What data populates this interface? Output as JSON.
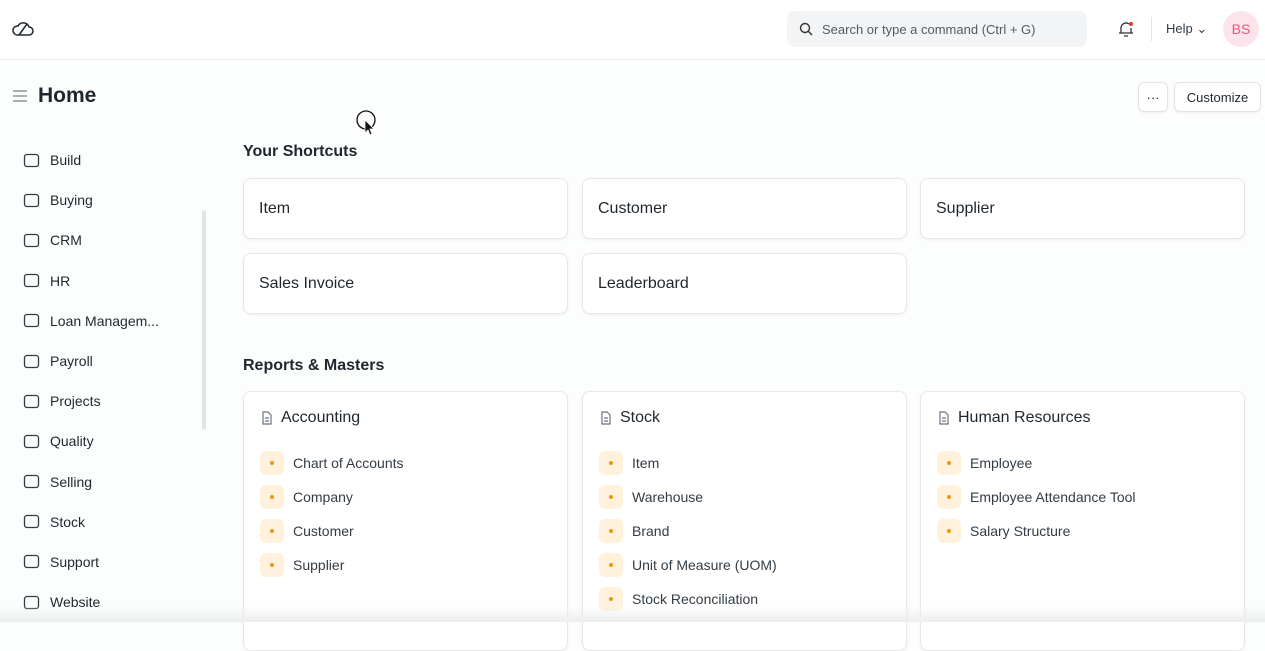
{
  "navbar": {
    "search_placeholder": "Search or type a command (Ctrl + G)",
    "help_label": "Help",
    "avatar_initials": "BS",
    "icons": [
      "frappe-cloud-logo",
      "search-icon",
      "bell-icon",
      "chevron-down-icon"
    ]
  },
  "page": {
    "title": "Home",
    "more_label": "···",
    "customize_label": "Customize"
  },
  "sidebar": {
    "items": [
      {
        "label": "Build",
        "icon": "tools-icon"
      },
      {
        "label": "Buying",
        "icon": "bag-icon"
      },
      {
        "label": "CRM",
        "icon": "pie-icon"
      },
      {
        "label": "HR",
        "icon": "briefcase-icon"
      },
      {
        "label": "Loan Managem...",
        "icon": "loan-icon"
      },
      {
        "label": "Payroll",
        "icon": "coins-icon"
      },
      {
        "label": "Projects",
        "icon": "folder-icon"
      },
      {
        "label": "Quality",
        "icon": "shield-icon"
      },
      {
        "label": "Selling",
        "icon": "card-icon"
      },
      {
        "label": "Stock",
        "icon": "box-icon"
      },
      {
        "label": "Support",
        "icon": "headset-icon"
      },
      {
        "label": "Website",
        "icon": "browser-icon"
      }
    ]
  },
  "shortcuts": {
    "heading": "Your Shortcuts",
    "items": [
      "Item",
      "Customer",
      "Supplier",
      "Sales Invoice",
      "Leaderboard"
    ]
  },
  "reports": {
    "heading": "Reports & Masters",
    "cards": [
      {
        "title": "Accounting",
        "links": [
          "Chart of Accounts",
          "Company",
          "Customer",
          "Supplier"
        ]
      },
      {
        "title": "Stock",
        "links": [
          "Item",
          "Warehouse",
          "Brand",
          "Unit of Measure (UOM)",
          "Stock Reconciliation"
        ]
      },
      {
        "title": "Human Resources",
        "links": [
          "Employee",
          "Employee Attendance Tool",
          "Salary Structure"
        ]
      }
    ]
  },
  "colors": {
    "accent_dot": "#e79913",
    "dot_bg": "#fff1dc",
    "avatar_bg": "#fde3ea",
    "avatar_text": "#e8577b",
    "notification": "#e03636"
  }
}
